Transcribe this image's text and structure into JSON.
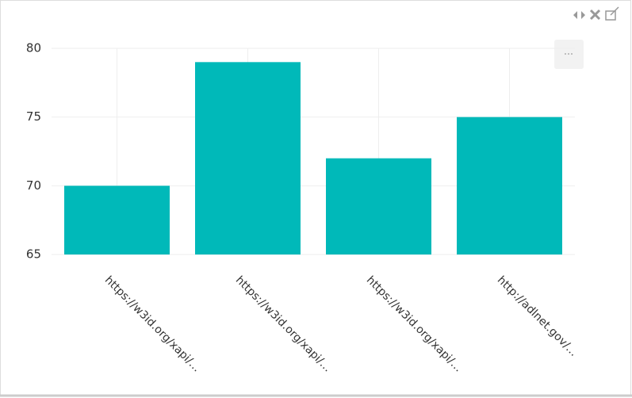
{
  "chart_data": {
    "type": "bar",
    "categories": [
      "https://w3id.org/xapi/…",
      "https://w3id.org/xapi/…",
      "https://w3id.org/xapi/…",
      "http://adlnet.gov/…"
    ],
    "values": [
      70,
      79,
      72,
      75
    ],
    "color": "#00b9b9",
    "ylim": [
      65,
      80
    ],
    "yticks": [
      65,
      70,
      75,
      80
    ],
    "grid": true
  }
}
